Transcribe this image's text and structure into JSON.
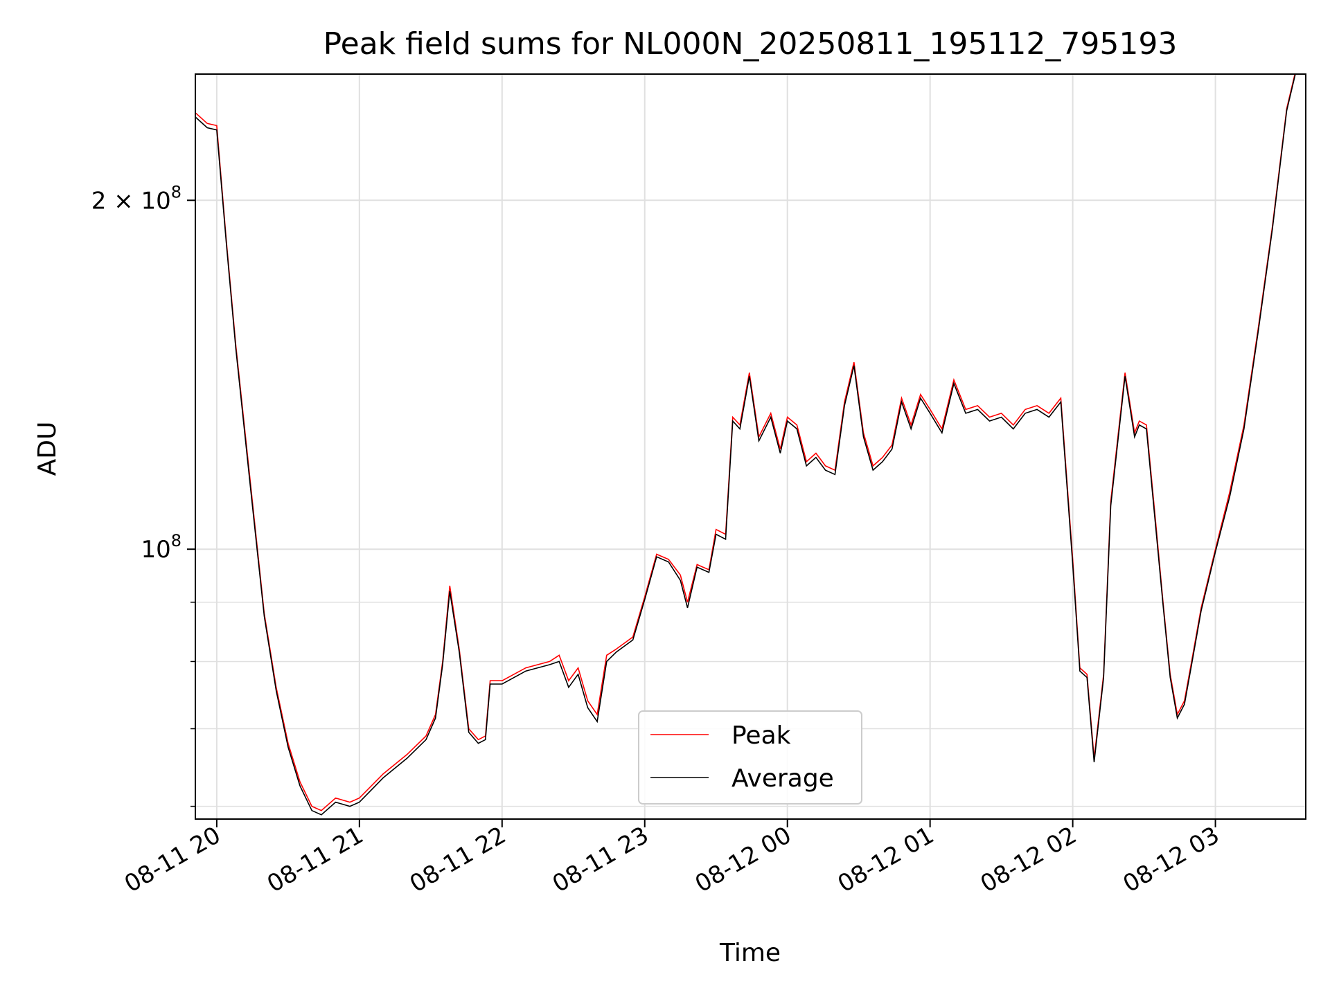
{
  "chart_data": {
    "type": "line",
    "title": "Peak field sums for NL000N_20250811_195112_795193",
    "xlabel": "Time",
    "ylabel": "ADU",
    "y_scale": "log",
    "grid": true,
    "legend_position": "lower center",
    "xlim": [
      "2025-08-11 19:51",
      "2025-08-12 03:38"
    ],
    "ylim": [
      58500000,
      257000000
    ],
    "x_ticks": [
      "08-11 20",
      "08-11 21",
      "08-11 22",
      "08-11 23",
      "08-12 00",
      "08-12 01",
      "08-12 02",
      "08-12 03"
    ],
    "y_ticks": [
      {
        "base": "2 × 10",
        "exp": "8",
        "value": 200000000
      },
      {
        "base": "10",
        "exp": "8",
        "value": 100000000
      }
    ],
    "y_minor_ticks": [
      60000000,
      70000000,
      80000000,
      90000000
    ],
    "colors": {
      "peak": "#ff0000",
      "average": "#000000",
      "grid": "#e0e0e0"
    },
    "series": [
      {
        "name": "Peak",
        "x": [
          "2025-08-11 19:51",
          "2025-08-11 19:56",
          "2025-08-11 20:00",
          "2025-08-11 20:04",
          "2025-08-11 20:08",
          "2025-08-11 20:14",
          "2025-08-11 20:20",
          "2025-08-11 20:25",
          "2025-08-11 20:30",
          "2025-08-11 20:35",
          "2025-08-11 20:40",
          "2025-08-11 20:44",
          "2025-08-11 20:50",
          "2025-08-11 20:56",
          "2025-08-11 21:00",
          "2025-08-11 21:10",
          "2025-08-11 21:20",
          "2025-08-11 21:28",
          "2025-08-11 21:32",
          "2025-08-11 21:35",
          "2025-08-11 21:38",
          "2025-08-11 21:42",
          "2025-08-11 21:46",
          "2025-08-11 21:50",
          "2025-08-11 21:53",
          "2025-08-11 21:55",
          "2025-08-11 22:00",
          "2025-08-11 22:10",
          "2025-08-11 22:20",
          "2025-08-11 22:24",
          "2025-08-11 22:28",
          "2025-08-11 22:32",
          "2025-08-11 22:36",
          "2025-08-11 22:40",
          "2025-08-11 22:44",
          "2025-08-11 22:48",
          "2025-08-11 22:55",
          "2025-08-11 23:00",
          "2025-08-11 23:05",
          "2025-08-11 23:10",
          "2025-08-11 23:15",
          "2025-08-11 23:18",
          "2025-08-11 23:22",
          "2025-08-11 23:27",
          "2025-08-11 23:30",
          "2025-08-11 23:34",
          "2025-08-11 23:37",
          "2025-08-11 23:40",
          "2025-08-11 23:44",
          "2025-08-11 23:48",
          "2025-08-11 23:53",
          "2025-08-11 23:57",
          "2025-08-12 00:00",
          "2025-08-12 00:04",
          "2025-08-12 00:08",
          "2025-08-12 00:12",
          "2025-08-12 00:16",
          "2025-08-12 00:20",
          "2025-08-12 00:24",
          "2025-08-12 00:28",
          "2025-08-12 00:32",
          "2025-08-12 00:36",
          "2025-08-12 00:40",
          "2025-08-12 00:44",
          "2025-08-12 00:48",
          "2025-08-12 00:52",
          "2025-08-12 00:56",
          "2025-08-12 01:00",
          "2025-08-12 01:05",
          "2025-08-12 01:10",
          "2025-08-12 01:15",
          "2025-08-12 01:20",
          "2025-08-12 01:25",
          "2025-08-12 01:30",
          "2025-08-12 01:35",
          "2025-08-12 01:40",
          "2025-08-12 01:45",
          "2025-08-12 01:50",
          "2025-08-12 01:55",
          "2025-08-12 02:00",
          "2025-08-12 02:03",
          "2025-08-12 02:06",
          "2025-08-12 02:09",
          "2025-08-12 02:13",
          "2025-08-12 02:16",
          "2025-08-12 02:19",
          "2025-08-12 02:22",
          "2025-08-12 02:26",
          "2025-08-12 02:28",
          "2025-08-12 02:31",
          "2025-08-12 02:35",
          "2025-08-12 02:38",
          "2025-08-12 02:41",
          "2025-08-12 02:44",
          "2025-08-12 02:47",
          "2025-08-12 02:50",
          "2025-08-12 02:54",
          "2025-08-12 03:00",
          "2025-08-12 03:06",
          "2025-08-12 03:12",
          "2025-08-12 03:18",
          "2025-08-12 03:24",
          "2025-08-12 03:30",
          "2025-08-12 03:34"
        ],
        "values": [
          238000000,
          233000000,
          232000000,
          185000000,
          150000000,
          115000000,
          88000000,
          76000000,
          68000000,
          63000000,
          60000000,
          59500000,
          61000000,
          60500000,
          61000000,
          64000000,
          66500000,
          69000000,
          72000000,
          80000000,
          93000000,
          82000000,
          70000000,
          68500000,
          69000000,
          77000000,
          77000000,
          79000000,
          80000000,
          81000000,
          77000000,
          79000000,
          74000000,
          72000000,
          81000000,
          82000000,
          84000000,
          91000000,
          99000000,
          98000000,
          95000000,
          90000000,
          97000000,
          96000000,
          104000000,
          103000000,
          130000000,
          128000000,
          142000000,
          125000000,
          131000000,
          122000000,
          130000000,
          128000000,
          119000000,
          121000000,
          118000000,
          117000000,
          134000000,
          145000000,
          126000000,
          118000000,
          120000000,
          123000000,
          135000000,
          128000000,
          136000000,
          132000000,
          127000000,
          140000000,
          132000000,
          133000000,
          130000000,
          131000000,
          128000000,
          132000000,
          133000000,
          131000000,
          135000000,
          98000000,
          79000000,
          78000000,
          66000000,
          78000000,
          110000000,
          125000000,
          142000000,
          126000000,
          129000000,
          128000000,
          105000000,
          90000000,
          78000000,
          72000000,
          74000000,
          80000000,
          89000000,
          100000000,
          112000000,
          128000000,
          155000000,
          190000000,
          240000000,
          260000000
        ]
      },
      {
        "name": "Average",
        "x": [
          "2025-08-11 19:51",
          "2025-08-11 19:56",
          "2025-08-11 20:00",
          "2025-08-11 20:04",
          "2025-08-11 20:08",
          "2025-08-11 20:14",
          "2025-08-11 20:20",
          "2025-08-11 20:25",
          "2025-08-11 20:30",
          "2025-08-11 20:35",
          "2025-08-11 20:40",
          "2025-08-11 20:44",
          "2025-08-11 20:50",
          "2025-08-11 20:56",
          "2025-08-11 21:00",
          "2025-08-11 21:10",
          "2025-08-11 21:20",
          "2025-08-11 21:28",
          "2025-08-11 21:32",
          "2025-08-11 21:35",
          "2025-08-11 21:38",
          "2025-08-11 21:42",
          "2025-08-11 21:46",
          "2025-08-11 21:50",
          "2025-08-11 21:53",
          "2025-08-11 21:55",
          "2025-08-11 22:00",
          "2025-08-11 22:10",
          "2025-08-11 22:20",
          "2025-08-11 22:24",
          "2025-08-11 22:28",
          "2025-08-11 22:32",
          "2025-08-11 22:36",
          "2025-08-11 22:40",
          "2025-08-11 22:44",
          "2025-08-11 22:48",
          "2025-08-11 22:55",
          "2025-08-11 23:00",
          "2025-08-11 23:05",
          "2025-08-11 23:10",
          "2025-08-11 23:15",
          "2025-08-11 23:18",
          "2025-08-11 23:22",
          "2025-08-11 23:27",
          "2025-08-11 23:30",
          "2025-08-11 23:34",
          "2025-08-11 23:37",
          "2025-08-11 23:40",
          "2025-08-11 23:44",
          "2025-08-11 23:48",
          "2025-08-11 23:53",
          "2025-08-11 23:57",
          "2025-08-12 00:00",
          "2025-08-12 00:04",
          "2025-08-12 00:08",
          "2025-08-12 00:12",
          "2025-08-12 00:16",
          "2025-08-12 00:20",
          "2025-08-12 00:24",
          "2025-08-12 00:28",
          "2025-08-12 00:32",
          "2025-08-12 00:36",
          "2025-08-12 00:40",
          "2025-08-12 00:44",
          "2025-08-12 00:48",
          "2025-08-12 00:52",
          "2025-08-12 00:56",
          "2025-08-12 01:00",
          "2025-08-12 01:05",
          "2025-08-12 01:10",
          "2025-08-12 01:15",
          "2025-08-12 01:20",
          "2025-08-12 01:25",
          "2025-08-12 01:30",
          "2025-08-12 01:35",
          "2025-08-12 01:40",
          "2025-08-12 01:45",
          "2025-08-12 01:50",
          "2025-08-12 01:55",
          "2025-08-12 02:00",
          "2025-08-12 02:03",
          "2025-08-12 02:06",
          "2025-08-12 02:09",
          "2025-08-12 02:13",
          "2025-08-12 02:16",
          "2025-08-12 02:19",
          "2025-08-12 02:22",
          "2025-08-12 02:26",
          "2025-08-12 02:28",
          "2025-08-12 02:31",
          "2025-08-12 02:35",
          "2025-08-12 02:38",
          "2025-08-12 02:41",
          "2025-08-12 02:44",
          "2025-08-12 02:47",
          "2025-08-12 02:50",
          "2025-08-12 02:54",
          "2025-08-12 03:00",
          "2025-08-12 03:06",
          "2025-08-12 03:12",
          "2025-08-12 03:18",
          "2025-08-12 03:24",
          "2025-08-12 03:30",
          "2025-08-12 03:34"
        ],
        "values": [
          236000000,
          231000000,
          230000000,
          184000000,
          149000000,
          114000000,
          87500000,
          75500000,
          67500000,
          62500000,
          59500000,
          59000000,
          60500000,
          60000000,
          60500000,
          63500000,
          66000000,
          68500000,
          71500000,
          79500000,
          92000000,
          81500000,
          69500000,
          68000000,
          68500000,
          76500000,
          76500000,
          78500000,
          79500000,
          80000000,
          76000000,
          78000000,
          73000000,
          71000000,
          80000000,
          81500000,
          83500000,
          90500000,
          98500000,
          97500000,
          94000000,
          89000000,
          96500000,
          95500000,
          103000000,
          102000000,
          129000000,
          127000000,
          141000000,
          124000000,
          130000000,
          121000000,
          129000000,
          127000000,
          118000000,
          120000000,
          117000000,
          116000000,
          133000000,
          144000000,
          125000000,
          117000000,
          119000000,
          122000000,
          134000000,
          127000000,
          135000000,
          131000000,
          126000000,
          139000000,
          131000000,
          132000000,
          129000000,
          130000000,
          127000000,
          131000000,
          132000000,
          130000000,
          134000000,
          97000000,
          78500000,
          77500000,
          65500000,
          77500000,
          109000000,
          124000000,
          141000000,
          125000000,
          128000000,
          127000000,
          104000000,
          89500000,
          77500000,
          71500000,
          73500000,
          79500000,
          88500000,
          99500000,
          111000000,
          127000000,
          154000000,
          189000000,
          239000000,
          259000000
        ]
      }
    ]
  }
}
